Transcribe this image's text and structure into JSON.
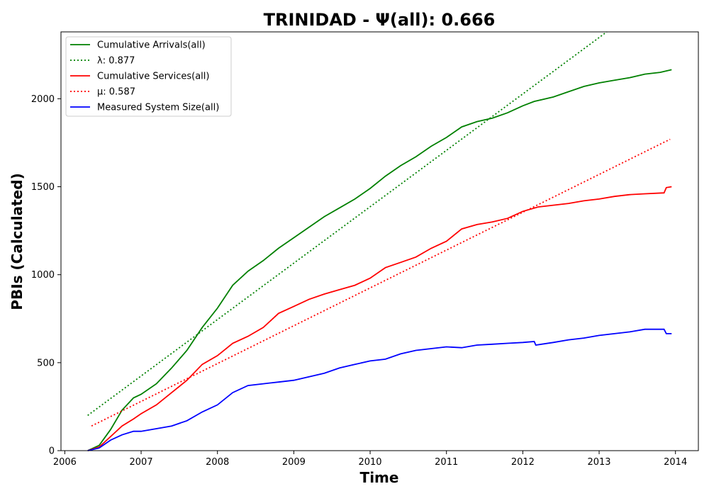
{
  "chart_data": {
    "type": "line",
    "title": "TRINIDAD -  Ψ(all): 0.666",
    "xlabel": "Time",
    "ylabel": "PBIs (Calculated)",
    "xlim": [
      2005.95,
      2014.3
    ],
    "ylim": [
      0,
      2380
    ],
    "x_ticks": [
      2006,
      2007,
      2008,
      2009,
      2010,
      2011,
      2012,
      2013,
      2014
    ],
    "x_tick_labels": [
      "2006",
      "2007",
      "2008",
      "2009",
      "2010",
      "2011",
      "2012",
      "2013",
      "2014"
    ],
    "y_ticks": [
      0,
      500,
      1000,
      1500,
      2000
    ],
    "y_tick_labels": [
      "0",
      "500",
      "1000",
      "1500",
      "2000"
    ],
    "grid": false,
    "legend_position": "top-left",
    "series": [
      {
        "name": "Cumulative Arrivals(all)",
        "color": "#008000",
        "style": "solid",
        "x": [
          2006.3,
          2006.45,
          2006.6,
          2006.75,
          2006.9,
          2007.0,
          2007.2,
          2007.4,
          2007.6,
          2007.8,
          2008.0,
          2008.2,
          2008.4,
          2008.6,
          2008.8,
          2009.0,
          2009.2,
          2009.4,
          2009.6,
          2009.8,
          2010.0,
          2010.2,
          2010.4,
          2010.6,
          2010.8,
          2011.0,
          2011.2,
          2011.4,
          2011.6,
          2011.8,
          2012.0,
          2012.15,
          2012.4,
          2012.6,
          2012.8,
          2013.0,
          2013.2,
          2013.4,
          2013.6,
          2013.8,
          2013.95
        ],
        "values": [
          0,
          30,
          120,
          230,
          300,
          320,
          380,
          470,
          570,
          700,
          810,
          940,
          1020,
          1080,
          1150,
          1210,
          1270,
          1330,
          1380,
          1430,
          1490,
          1560,
          1620,
          1670,
          1730,
          1780,
          1840,
          1870,
          1890,
          1920,
          1960,
          1985,
          2010,
          2040,
          2070,
          2090,
          2105,
          2120,
          2140,
          2150,
          2165
        ]
      },
      {
        "name": "λ: 0.877",
        "color": "#008000",
        "style": "dotted",
        "x": [
          2006.3,
          2013.1
        ],
        "values": [
          200,
          2380
        ]
      },
      {
        "name": "Cumulative Services(all)",
        "color": "#ff0000",
        "style": "solid",
        "x": [
          2006.3,
          2006.45,
          2006.6,
          2006.75,
          2006.9,
          2007.0,
          2007.2,
          2007.4,
          2007.6,
          2007.8,
          2008.0,
          2008.2,
          2008.4,
          2008.6,
          2008.8,
          2009.0,
          2009.2,
          2009.4,
          2009.6,
          2009.8,
          2010.0,
          2010.2,
          2010.4,
          2010.6,
          2010.8,
          2011.0,
          2011.2,
          2011.4,
          2011.6,
          2011.8,
          2012.0,
          2012.2,
          2012.4,
          2012.6,
          2012.8,
          2013.0,
          2013.2,
          2013.4,
          2013.6,
          2013.85,
          2013.88,
          2013.95
        ],
        "values": [
          0,
          20,
          80,
          140,
          180,
          210,
          260,
          330,
          400,
          490,
          540,
          610,
          650,
          700,
          780,
          820,
          860,
          890,
          915,
          940,
          980,
          1040,
          1070,
          1100,
          1150,
          1190,
          1260,
          1285,
          1300,
          1320,
          1360,
          1385,
          1395,
          1405,
          1420,
          1430,
          1445,
          1455,
          1460,
          1465,
          1495,
          1500
        ]
      },
      {
        "name": "μ: 0.587",
        "color": "#ff0000",
        "style": "dotted",
        "x": [
          2006.35,
          2013.93
        ],
        "values": [
          140,
          1770
        ]
      },
      {
        "name": "Measured System Size(all)",
        "color": "#0000ff",
        "style": "solid",
        "x": [
          2006.3,
          2006.45,
          2006.6,
          2006.75,
          2006.9,
          2007.0,
          2007.2,
          2007.4,
          2007.6,
          2007.8,
          2008.0,
          2008.2,
          2008.4,
          2008.6,
          2008.8,
          2009.0,
          2009.2,
          2009.4,
          2009.6,
          2009.8,
          2010.0,
          2010.2,
          2010.4,
          2010.6,
          2010.8,
          2011.0,
          2011.2,
          2011.4,
          2011.6,
          2011.8,
          2012.0,
          2012.15,
          2012.17,
          2012.4,
          2012.6,
          2012.8,
          2013.0,
          2013.2,
          2013.4,
          2013.6,
          2013.85,
          2013.88,
          2013.95
        ],
        "values": [
          0,
          15,
          60,
          90,
          110,
          110,
          125,
          140,
          170,
          220,
          260,
          330,
          370,
          380,
          390,
          400,
          420,
          440,
          470,
          490,
          510,
          520,
          550,
          570,
          580,
          590,
          585,
          600,
          605,
          610,
          615,
          620,
          600,
          615,
          630,
          640,
          655,
          665,
          675,
          690,
          690,
          665,
          665
        ]
      }
    ]
  }
}
